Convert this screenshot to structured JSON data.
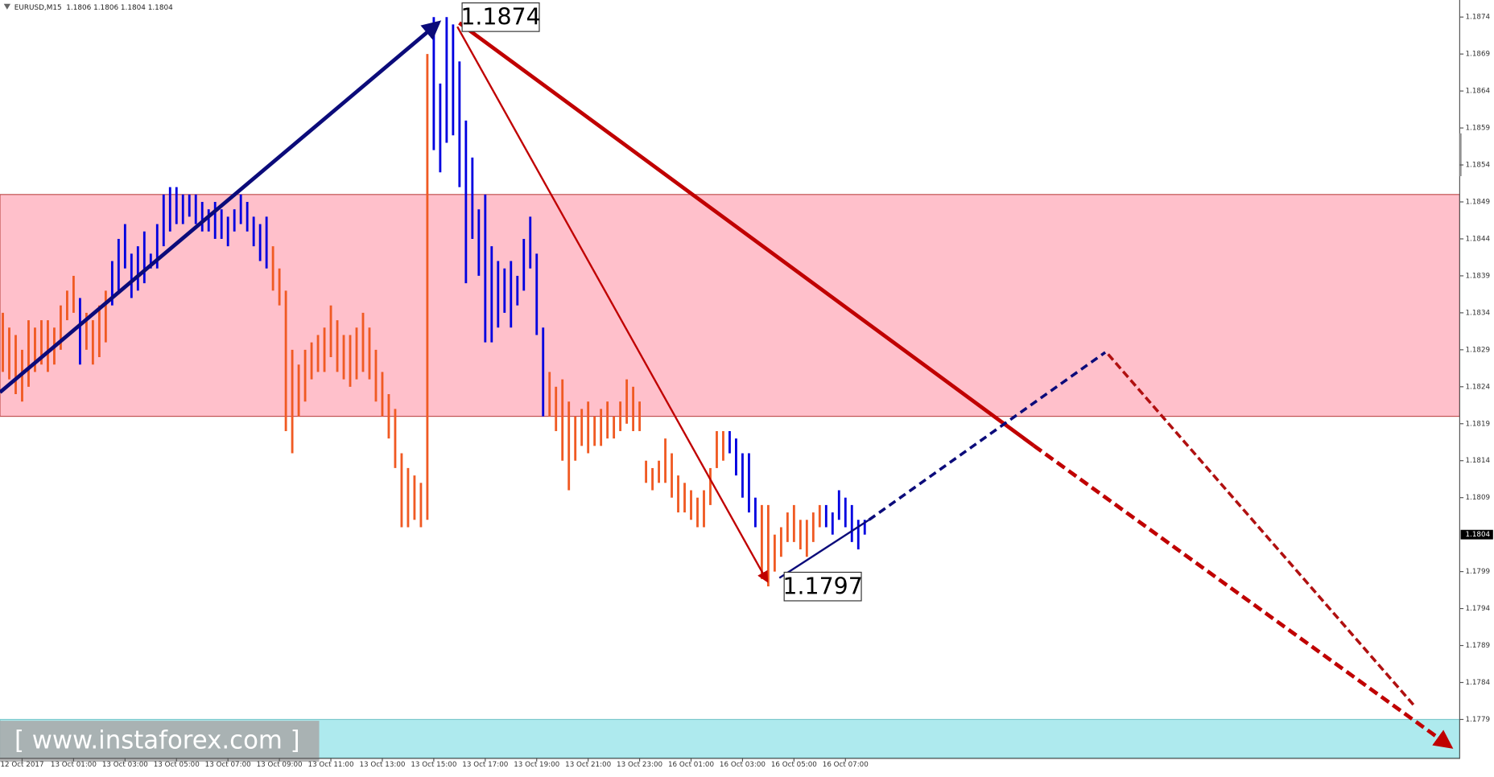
{
  "chart_data": {
    "type": "ohlc",
    "title": "EURUSD,M15  1.1806 1.1806 1.1804 1.1804",
    "watermark": "[ www.instaforex.com ]",
    "annotations": [
      "1.1874",
      "1.1797"
    ],
    "price_label": 1.1804,
    "xlim": [
      -0.44,
      226.5
    ],
    "ylim": [
      1.17738,
      1.18763
    ],
    "yticks": [
      1.1874,
      1.1869,
      1.1864,
      1.1859,
      1.1854,
      1.1849,
      1.1844,
      1.1839,
      1.1834,
      1.1829,
      1.1824,
      1.1819,
      1.1814,
      1.1809,
      1.1799,
      1.1794,
      1.1789,
      1.1784,
      1.1779
    ],
    "xticks": [
      {
        "value": 3,
        "label": "12 Oct 2017"
      },
      {
        "value": 11,
        "label": "13 Oct 01:00"
      },
      {
        "value": 19,
        "label": "13 Oct 03:00"
      },
      {
        "value": 27,
        "label": "13 Oct 05:00"
      },
      {
        "value": 35,
        "label": "13 Oct 07:00"
      },
      {
        "value": 43,
        "label": "13 Oct 09:00"
      },
      {
        "value": 51,
        "label": "13 Oct 11:00"
      },
      {
        "value": 59,
        "label": "13 Oct 13:00"
      },
      {
        "value": 67,
        "label": "13 Oct 15:00"
      },
      {
        "value": 75,
        "label": "13 Oct 17:00"
      },
      {
        "value": 83,
        "label": "13 Oct 19:00"
      },
      {
        "value": 91,
        "label": "13 Oct 21:00"
      },
      {
        "value": 99,
        "label": "13 Oct 23:00"
      },
      {
        "value": 107,
        "label": "16 Oct 01:00"
      },
      {
        "value": 115,
        "label": "16 Oct 03:00"
      },
      {
        "value": 123,
        "label": "16 Oct 05:00"
      },
      {
        "value": 131,
        "label": "16 Oct 07:00"
      }
    ],
    "zones": [
      {
        "from": 1.182,
        "to": 1.185,
        "color": "#ffc0cb",
        "stroke": "#c05050"
      },
      {
        "from": 1.17738,
        "to": 1.1779,
        "color": "#aeeaee",
        "stroke": "#7bc8cc"
      }
    ],
    "series": [
      {
        "color": "#f05a23",
        "x": [
          0,
          1,
          2,
          3,
          4,
          5,
          6,
          7,
          8,
          9,
          10,
          11,
          13,
          14,
          15,
          16,
          42,
          43,
          44,
          45,
          46,
          47,
          48,
          49,
          50,
          51,
          52,
          53,
          54,
          55,
          56,
          57,
          58,
          59,
          60,
          61,
          62,
          63,
          64,
          65,
          66,
          85,
          86,
          87,
          88,
          89,
          90,
          91,
          92,
          93,
          94,
          95,
          96,
          97,
          98,
          99,
          100,
          101,
          102,
          103,
          104,
          105,
          106,
          107,
          108,
          109,
          110,
          111,
          112,
          118,
          119,
          120,
          121,
          122,
          123,
          124,
          125,
          126,
          127
        ],
        "high": [
          1.1834,
          1.1832,
          1.1831,
          1.1829,
          1.1833,
          1.1832,
          1.1833,
          1.1833,
          1.1832,
          1.1835,
          1.1837,
          1.1839,
          1.1834,
          1.1833,
          1.1835,
          1.1837,
          1.1843,
          1.184,
          1.1837,
          1.1829,
          1.1827,
          1.1829,
          1.183,
          1.1831,
          1.1832,
          1.1835,
          1.1833,
          1.1831,
          1.1831,
          1.1832,
          1.1834,
          1.1832,
          1.1829,
          1.1826,
          1.1823,
          1.1821,
          1.1815,
          1.1813,
          1.1812,
          1.1811,
          1.1869,
          1.1826,
          1.1824,
          1.1825,
          1.1822,
          1.182,
          1.1821,
          1.1822,
          1.182,
          1.1821,
          1.1822,
          1.182,
          1.1822,
          1.1825,
          1.1824,
          1.1822,
          1.1814,
          1.1813,
          1.1814,
          1.1817,
          1.1815,
          1.1812,
          1.1811,
          1.181,
          1.1809,
          1.181,
          1.1813,
          1.1818,
          1.1818,
          1.1808,
          1.1808,
          1.1804,
          1.1805,
          1.1807,
          1.1808,
          1.1806,
          1.1806,
          1.1807,
          1.1808
        ],
        "low": [
          1.1826,
          1.1825,
          1.1823,
          1.1822,
          1.1824,
          1.1826,
          1.1827,
          1.1826,
          1.1827,
          1.1829,
          1.1833,
          1.1834,
          1.1829,
          1.1827,
          1.1828,
          1.183,
          1.1837,
          1.1835,
          1.1818,
          1.1815,
          1.182,
          1.1822,
          1.1825,
          1.1826,
          1.1826,
          1.1828,
          1.1826,
          1.1825,
          1.1824,
          1.1825,
          1.1826,
          1.1825,
          1.1822,
          1.182,
          1.1817,
          1.1813,
          1.1805,
          1.1805,
          1.1806,
          1.1805,
          1.1806,
          1.182,
          1.1818,
          1.1814,
          1.181,
          1.1814,
          1.1816,
          1.1815,
          1.1816,
          1.1816,
          1.1817,
          1.1817,
          1.1818,
          1.1819,
          1.1818,
          1.1818,
          1.1811,
          1.181,
          1.1811,
          1.1811,
          1.1809,
          1.1807,
          1.1807,
          1.1806,
          1.1805,
          1.1805,
          1.1808,
          1.1813,
          1.1814,
          1.1798,
          1.1797,
          1.1799,
          1.1801,
          1.1803,
          1.1803,
          1.1802,
          1.1801,
          1.1803,
          1.1805
        ]
      },
      {
        "color": "#0000e0",
        "x": [
          12,
          17,
          18,
          19,
          20,
          21,
          22,
          23,
          24,
          25,
          26,
          27,
          28,
          29,
          30,
          31,
          32,
          33,
          34,
          35,
          36,
          37,
          38,
          39,
          40,
          41,
          67,
          68,
          69,
          70,
          71,
          72,
          73,
          74,
          75,
          76,
          77,
          78,
          79,
          80,
          81,
          82,
          83,
          84,
          113,
          114,
          115,
          116,
          117,
          128,
          129,
          130,
          131,
          132,
          133,
          134
        ],
        "high": [
          1.1836,
          1.1841,
          1.1844,
          1.1846,
          1.1842,
          1.1843,
          1.1845,
          1.1842,
          1.1846,
          1.185,
          1.1851,
          1.1851,
          1.185,
          1.185,
          1.185,
          1.1849,
          1.1848,
          1.1849,
          1.1848,
          1.1847,
          1.1848,
          1.185,
          1.1849,
          1.1847,
          1.1846,
          1.1847,
          1.1874,
          1.1865,
          1.1874,
          1.1873,
          1.1868,
          1.186,
          1.1855,
          1.1848,
          1.185,
          1.1843,
          1.1841,
          1.184,
          1.1841,
          1.1839,
          1.1844,
          1.1847,
          1.1842,
          1.1832,
          1.1818,
          1.1817,
          1.1815,
          1.1815,
          1.1809,
          1.1808,
          1.1807,
          1.181,
          1.1809,
          1.1808,
          1.1806,
          1.1806
        ],
        "low": [
          1.1827,
          1.1835,
          1.1837,
          1.184,
          1.1836,
          1.1837,
          1.1838,
          1.184,
          1.184,
          1.1843,
          1.1845,
          1.1846,
          1.1846,
          1.1847,
          1.1846,
          1.1845,
          1.1845,
          1.1844,
          1.1844,
          1.1843,
          1.1845,
          1.1846,
          1.1845,
          1.1843,
          1.1841,
          1.184,
          1.1856,
          1.1853,
          1.1857,
          1.1858,
          1.1851,
          1.1838,
          1.1844,
          1.1839,
          1.183,
          1.183,
          1.1832,
          1.1834,
          1.1832,
          1.1835,
          1.1837,
          1.184,
          1.1831,
          1.182,
          1.1815,
          1.1812,
          1.1809,
          1.1807,
          1.1805,
          1.1805,
          1.1804,
          1.1806,
          1.1805,
          1.1803,
          1.1802,
          1.1804
        ]
      }
    ]
  }
}
